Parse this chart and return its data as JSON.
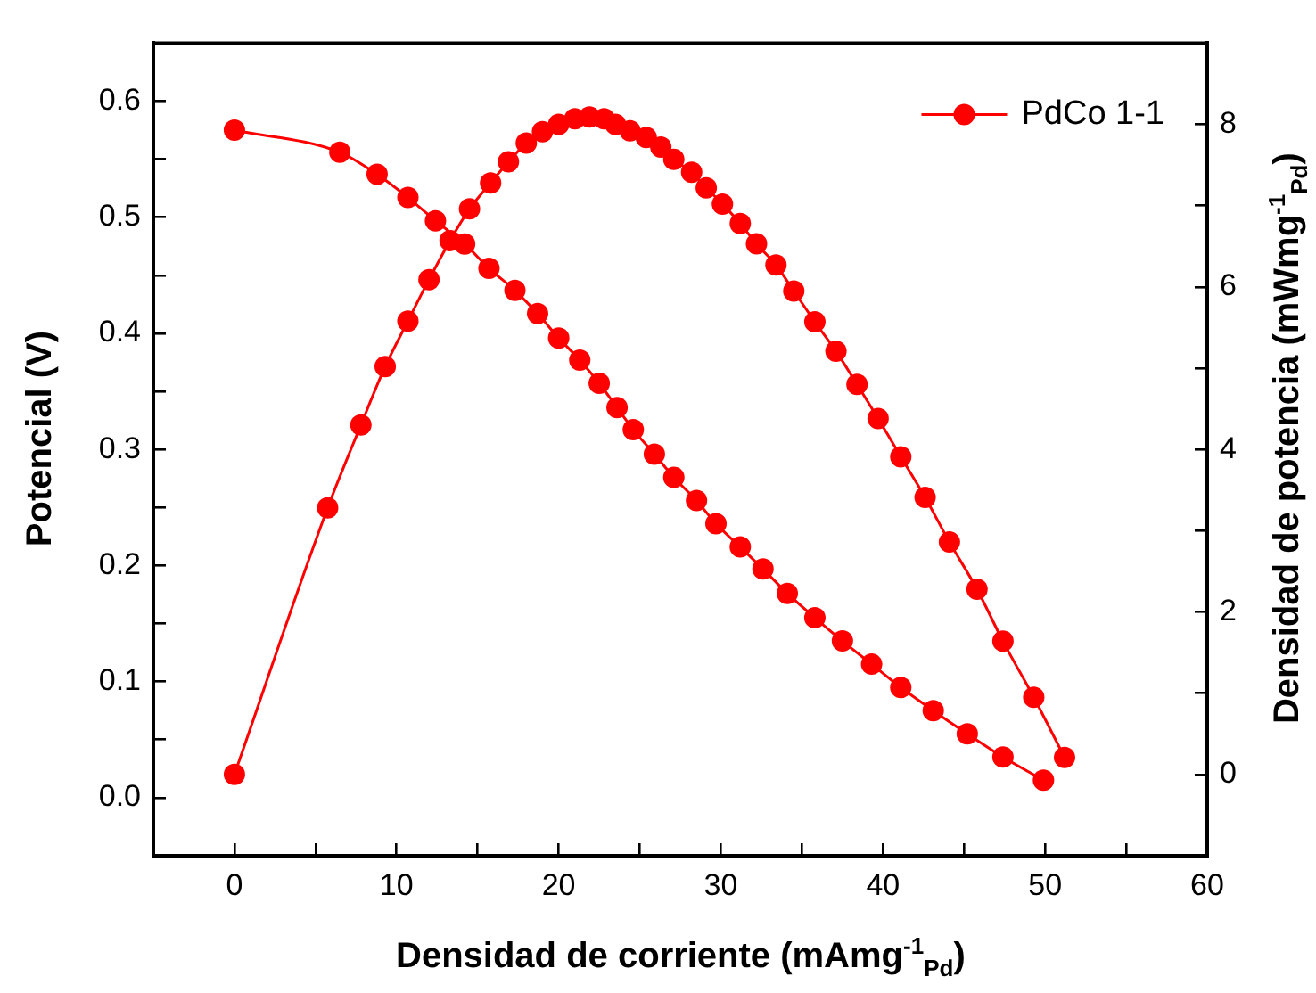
{
  "chart_data": {
    "type": "line",
    "xlabel": "Densidad de corriente (mAmg$^{-1}$$_{Pd}$)",
    "ylabel": "Potencial (V)",
    "y2label": "Densidad de potencia (mWmg$^{-1}$$_{Pd}$)",
    "xlim": [
      -5,
      60
    ],
    "xticks": [
      0,
      {
        "value": 5,
        "label": null
      },
      10,
      {
        "value": 15,
        "label": null
      },
      20,
      {
        "value": 25,
        "label": null
      },
      30,
      {
        "value": 35,
        "label": null
      },
      40,
      {
        "value": 45,
        "label": null
      },
      50,
      {
        "value": 55,
        "label": null
      },
      60
    ],
    "ylim": [
      -0.05,
      0.65
    ],
    "yticks": [
      {
        "value": 0,
        "label": "0.0"
      },
      {
        "value": 0.05,
        "label": null
      },
      0.1,
      {
        "value": 0.15,
        "label": null
      },
      0.2,
      {
        "value": 0.25,
        "label": null
      },
      0.3,
      {
        "value": 0.35,
        "label": null
      },
      0.4,
      {
        "value": 0.45,
        "label": null
      },
      0.5,
      {
        "value": 0.55,
        "label": null
      },
      0.6
    ],
    "y2lim": [
      -1,
      9
    ],
    "y2ticks": [
      0,
      {
        "value": 1,
        "label": null
      },
      2,
      {
        "value": 3,
        "label": null
      },
      4,
      {
        "value": 5,
        "label": null
      },
      6,
      {
        "value": 7,
        "label": null
      },
      8
    ],
    "grid": false,
    "legend": "top right",
    "marker": "circle",
    "line_style": "solid",
    "series": [
      {
        "name": "PdCo 1-1",
        "color": "#ff0000",
        "x": [
          0,
          6.5,
          8.8,
          10.7,
          12.4,
          14.2,
          15.7,
          17.3,
          18.7,
          20.0,
          21.3,
          22.5,
          23.6,
          24.6,
          25.9,
          27.1,
          28.5,
          29.7,
          31.2,
          32.6,
          34.1,
          35.8,
          37.5,
          39.3,
          41.1,
          43.1,
          45.2,
          47.4,
          49.9
        ],
        "values": [
          0.575,
          0.556,
          0.537,
          0.517,
          0.497,
          0.477,
          0.456,
          0.437,
          0.417,
          0.396,
          0.377,
          0.357,
          0.336,
          0.317,
          0.296,
          0.276,
          0.256,
          0.236,
          0.216,
          0.197,
          0.176,
          0.155,
          0.135,
          0.115,
          0.095,
          0.075,
          0.055,
          0.035,
          0.015
        ]
      },
      {
        "color": "#ff0000",
        "axis": "y2",
        "x": [
          0,
          5.75,
          7.8,
          9.3,
          10.7,
          12.0,
          13.3,
          14.5,
          15.8,
          16.9,
          18.0,
          19.0,
          20.0,
          21.0,
          21.9,
          22.8,
          23.5,
          24.4,
          25.4,
          26.3,
          27.1,
          28.2,
          29.1,
          30.1,
          31.2,
          32.2,
          33.4,
          34.5,
          35.8,
          37.1,
          38.4,
          39.7,
          41.1,
          42.6,
          44.1,
          45.8,
          47.4,
          49.3,
          51.2
        ],
        "values": [
          0.0,
          3.28,
          4.3,
          5.02,
          5.58,
          6.09,
          6.57,
          6.96,
          7.28,
          7.54,
          7.77,
          7.91,
          8.0,
          8.07,
          8.09,
          8.07,
          8.0,
          7.92,
          7.84,
          7.72,
          7.57,
          7.41,
          7.22,
          7.02,
          6.78,
          6.53,
          6.27,
          5.95,
          5.57,
          5.21,
          4.8,
          4.38,
          3.91,
          3.41,
          2.86,
          2.28,
          1.64,
          0.95,
          0.21
        ]
      }
    ]
  }
}
